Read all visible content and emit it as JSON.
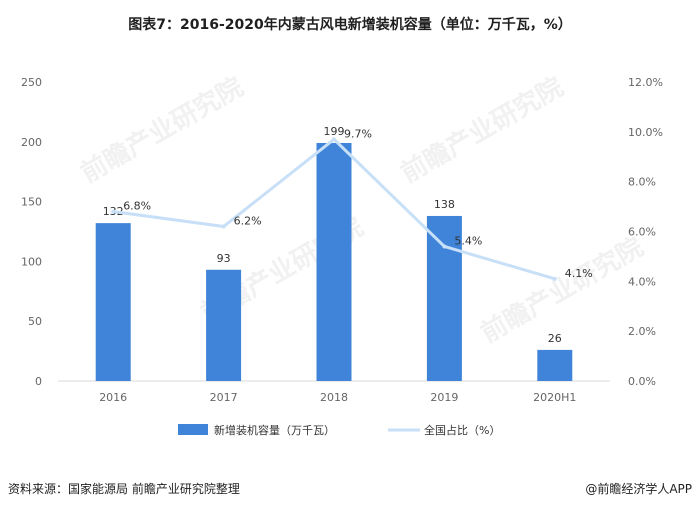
{
  "title": "图表7：2016-2020年内蒙古风电新增装机容量（单位：万千瓦，%）",
  "watermark_text": "前瞻产业研究院",
  "footer": {
    "source": "资料来源：国家能源局  前瞻产业研究院整理",
    "brand": "@前瞻经济学人APP"
  },
  "colors": {
    "bar": "#3f84d9",
    "line": "#c7dff7",
    "axis": "#d9d9d9"
  },
  "chart_data": {
    "type": "bar",
    "categories": [
      "2016",
      "2017",
      "2018",
      "2019",
      "2020H1"
    ],
    "series": [
      {
        "name": "新增装机容量（万千瓦）",
        "type": "bar",
        "axis": "left",
        "values": [
          132,
          93,
          199,
          138,
          26
        ],
        "labels": [
          "132",
          "93",
          "199",
          "138",
          "26"
        ]
      },
      {
        "name": "全国占比（%）",
        "type": "line",
        "axis": "right",
        "values": [
          6.8,
          6.2,
          9.7,
          5.4,
          4.1
        ],
        "labels": [
          "6.8%",
          "6.2%",
          "9.7%",
          "5.4%",
          "4.1%"
        ]
      }
    ],
    "y_left": {
      "ylim": [
        0,
        250
      ],
      "ticks": [
        "0",
        "50",
        "100",
        "150",
        "200",
        "250"
      ]
    },
    "y_right": {
      "ylim": [
        0,
        12
      ],
      "ticks": [
        "0.0%",
        "2.0%",
        "4.0%",
        "6.0%",
        "8.0%",
        "10.0%",
        "12.0%"
      ]
    },
    "legend_position": "bottom",
    "grid": false
  }
}
